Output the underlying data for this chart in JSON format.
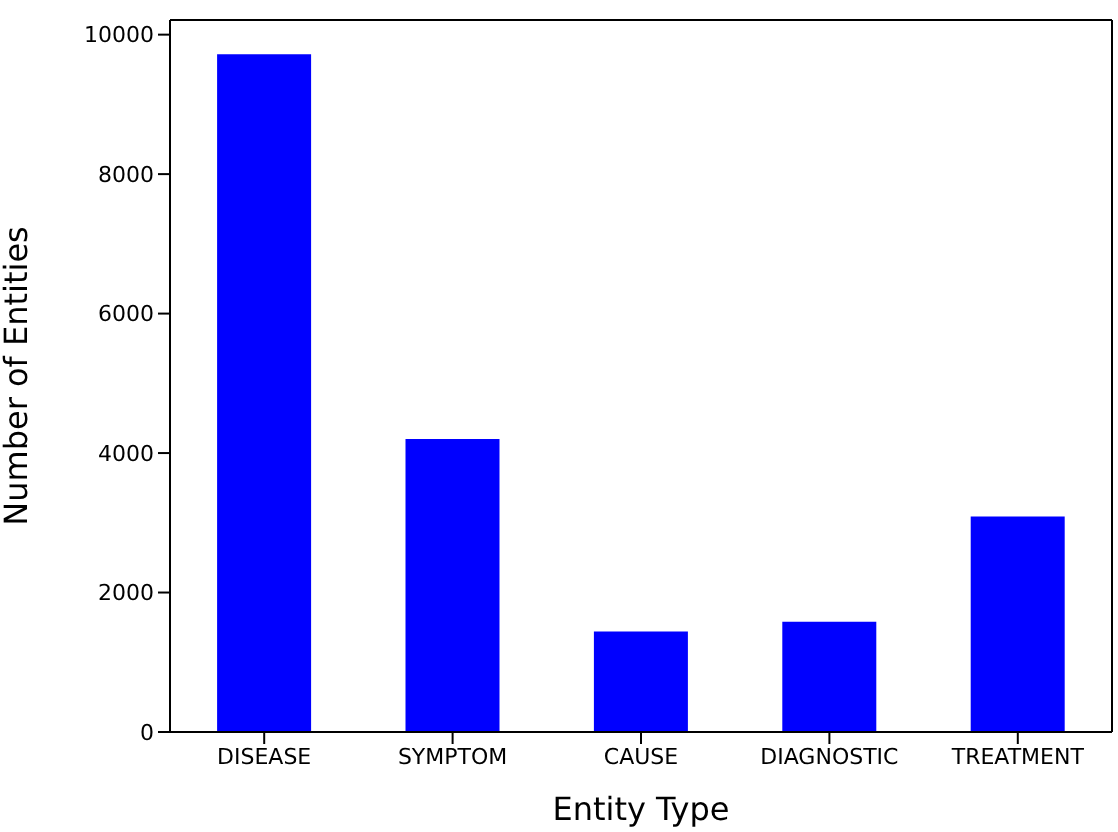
{
  "chart_data": {
    "type": "bar",
    "xlabel": "Entity Type",
    "ylabel": "Number of Entities",
    "categories": [
      "DISEASE",
      "SYMPTOM",
      "CAUSE",
      "DIAGNOSTIC",
      "TREATMENT"
    ],
    "values": [
      9720,
      4200,
      1440,
      1580,
      3090
    ],
    "color": "#0000ff",
    "ylim": [
      0,
      10210
    ],
    "yticks": [
      0,
      2000,
      4000,
      6000,
      8000,
      10000
    ],
    "grid": false,
    "legend": false
  }
}
